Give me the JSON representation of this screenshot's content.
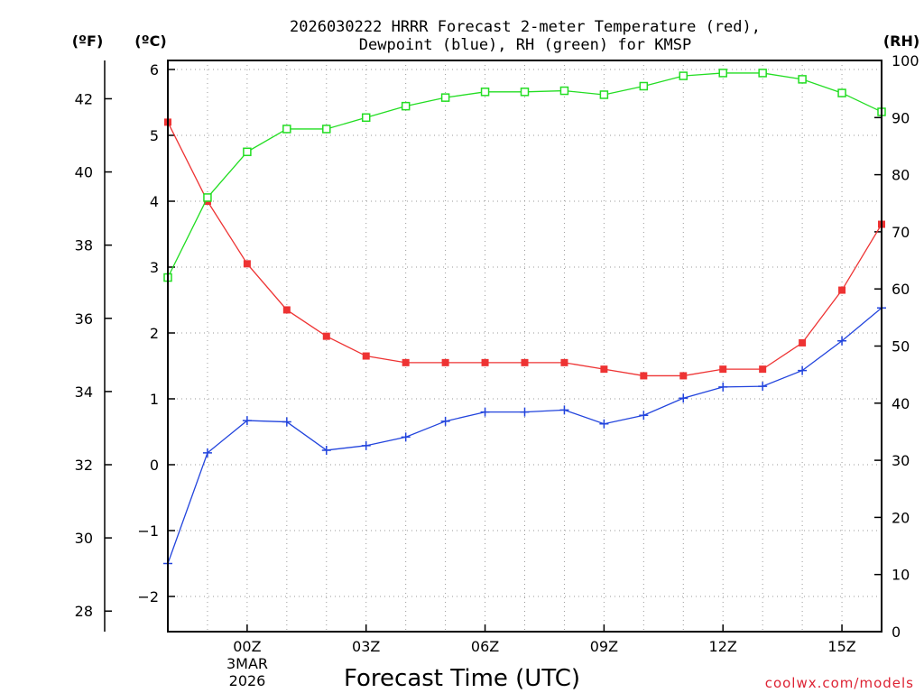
{
  "chart_data": {
    "type": "line",
    "title_line1": "2026030222 HRRR Forecast 2-meter Temperature (red),",
    "title_line2": "Dewpoint (blue), RH (green) for KMSP",
    "xlabel": "Forecast Time (UTC)",
    "credit": "coolwx.com/models",
    "unit_f": "(ºF)",
    "unit_c": "(ºC)",
    "unit_rh": "(RH)",
    "date_line1": "3MAR",
    "date_line2": "2026",
    "x_hours": [
      -2,
      -1,
      0,
      1,
      2,
      3,
      4,
      5,
      6,
      7,
      8,
      9,
      10,
      11,
      12,
      13,
      14,
      15,
      16
    ],
    "xlim": [
      -2,
      16
    ],
    "x_ticks": [
      {
        "hour": 0,
        "label": "00Z"
      },
      {
        "hour": 3,
        "label": "03Z"
      },
      {
        "hour": 6,
        "label": "06Z"
      },
      {
        "hour": 9,
        "label": "09Z"
      },
      {
        "hour": 12,
        "label": "12Z"
      },
      {
        "hour": 15,
        "label": "15Z"
      }
    ],
    "ylim_c": [
      -2.6,
      6.1
    ],
    "c_ticks": [
      -2,
      -1,
      0,
      1,
      2,
      3,
      4,
      5,
      6
    ],
    "f_ticks": [
      28,
      30,
      32,
      34,
      36,
      38,
      40,
      42
    ],
    "rh_lim": [
      0,
      100
    ],
    "rh_ticks": [
      0,
      10,
      20,
      30,
      40,
      50,
      60,
      70,
      80,
      90,
      100
    ],
    "series": [
      {
        "name": "Temperature (°C)",
        "color": "#ee3333",
        "axis": "c",
        "marker": "filled-square",
        "values": [
          5.2,
          4.0,
          3.05,
          2.35,
          1.95,
          1.65,
          1.55,
          1.55,
          1.55,
          1.55,
          1.55,
          1.45,
          1.35,
          1.35,
          1.45,
          1.45,
          1.85,
          2.65,
          3.65
        ]
      },
      {
        "name": "Dewpoint (°C)",
        "color": "#2244dd",
        "axis": "c",
        "marker": "plus",
        "values": [
          -1.5,
          0.18,
          0.67,
          0.65,
          0.22,
          0.29,
          0.42,
          0.66,
          0.8,
          0.8,
          0.83,
          0.62,
          0.75,
          1.01,
          1.18,
          1.19,
          1.43,
          1.88,
          2.38
        ]
      },
      {
        "name": "Relative Humidity (%)",
        "color": "#22dd22",
        "axis": "rh",
        "marker": "open-square",
        "values": [
          62,
          76,
          84,
          88,
          88,
          90,
          92,
          93.5,
          94.5,
          94.5,
          94.7,
          94,
          95.5,
          97.3,
          97.8,
          97.8,
          96.7,
          94.3,
          91
        ]
      }
    ]
  }
}
